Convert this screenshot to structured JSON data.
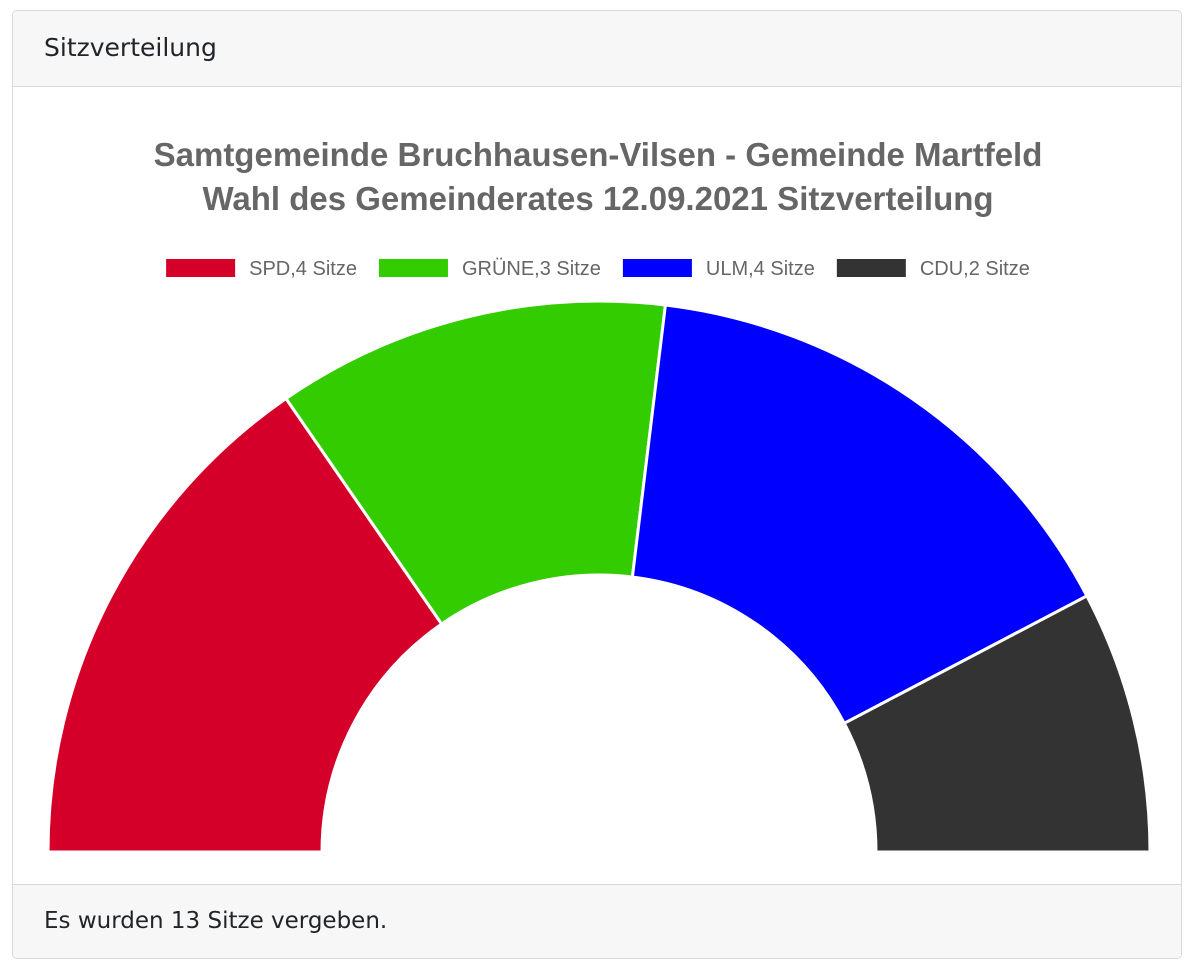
{
  "header": {
    "title": "Sitzverteilung"
  },
  "footer": {
    "text": "Es wurden 13 Sitze vergeben."
  },
  "chart_data": {
    "type": "pie",
    "variant": "half-doughnut",
    "title_lines": [
      "Samtgemeinde Bruchhausen-Vilsen - Gemeinde Martfeld",
      "Wahl des Gemeinderates 12.09.2021 Sitzverteilung"
    ],
    "legend_position": "top",
    "series": [
      {
        "name": "SPD",
        "label": "SPD,4 Sitze",
        "value": 4,
        "color": "#d50029"
      },
      {
        "name": "GRÜNE",
        "label": "GRÜNE,3 Sitze",
        "value": 3,
        "color": "#33cc00"
      },
      {
        "name": "ULM",
        "label": "ULM,4 Sitze",
        "value": 4,
        "color": "#0000ff"
      },
      {
        "name": "CDU",
        "label": "CDU,2 Sitze",
        "value": 2,
        "color": "#333333"
      }
    ],
    "total": 13
  }
}
